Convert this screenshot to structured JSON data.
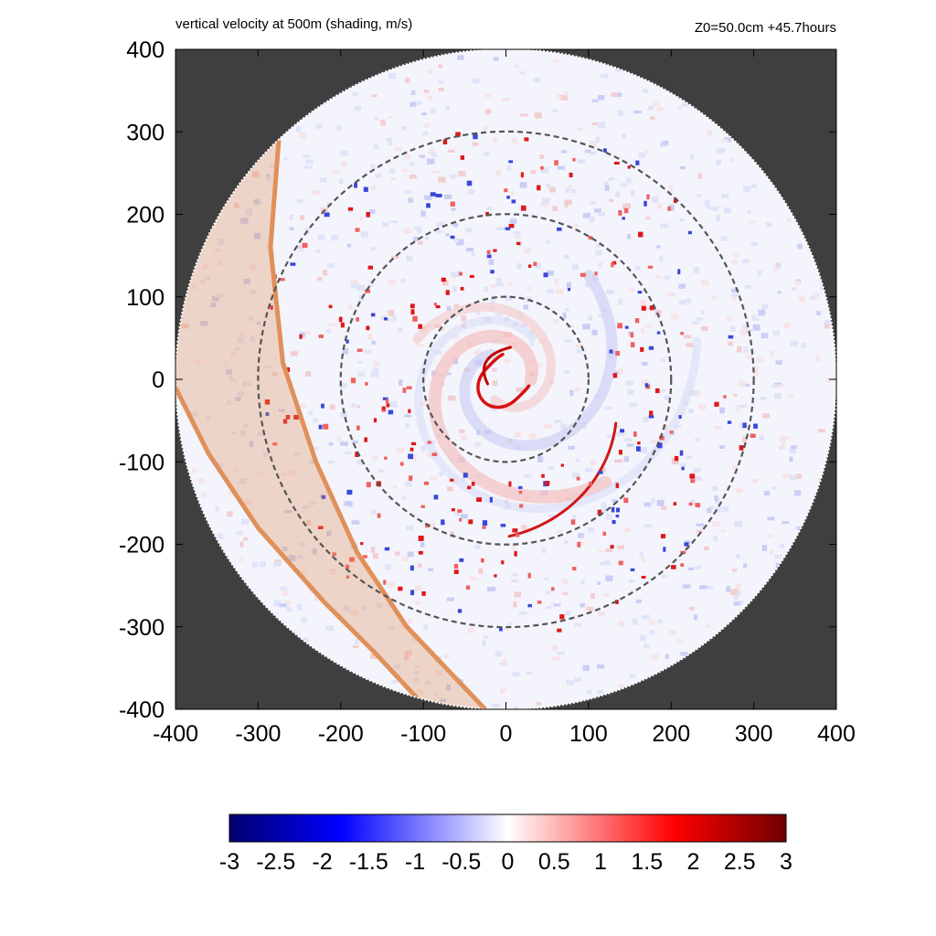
{
  "chart_data": {
    "type": "heatmap",
    "title": "vertical velocity at 500m (shading, m/s)",
    "run_info": "Z0=50.0cm  +45.7hours",
    "x_range": [
      -400,
      400
    ],
    "y_range": [
      -400,
      400
    ],
    "x_ticks": [
      "-400",
      "-300",
      "-200",
      "-100",
      "0",
      "100",
      "200",
      "300",
      "400"
    ],
    "y_ticks": [
      "400",
      "300",
      "200",
      "100",
      "0",
      "-100",
      "-200",
      "-300",
      "-400"
    ],
    "domain_radius": 400,
    "reference_circle_radii": [
      100,
      200,
      300
    ],
    "colorbar": {
      "ticks": [
        "-3",
        "-2.5",
        "-2",
        "-1.5",
        "-1",
        "-0.5",
        "0",
        "0.5",
        "1",
        "1.5",
        "2",
        "2.5",
        "3"
      ],
      "range": [
        -3,
        3
      ],
      "colors": [
        "#00006e",
        "#0000ff",
        "#ffffff",
        "#ff0000",
        "#6e0000"
      ]
    },
    "colors": {
      "background_outside_domain": "#3f3f3f",
      "reference_circles": "#555555",
      "coast_band": "#e0905a"
    }
  }
}
